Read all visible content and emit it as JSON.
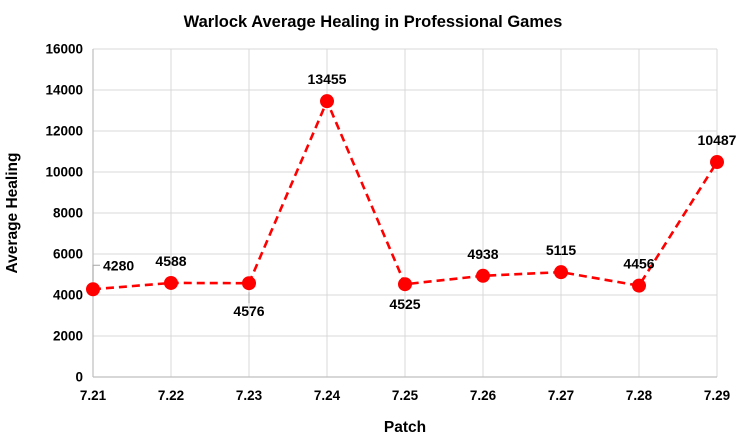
{
  "chart": {
    "title": "Warlock Average Healing in Professional Games",
    "xlabel": "Patch",
    "ylabel": "Average Healing"
  },
  "chart_data": {
    "type": "line",
    "title": "Warlock Average Healing in Professional Games",
    "xlabel": "Patch",
    "ylabel": "Average Healing",
    "categories": [
      "7.21",
      "7.22",
      "7.23",
      "7.24",
      "7.25",
      "7.26",
      "7.27",
      "7.28",
      "7.29"
    ],
    "series": [
      {
        "name": "Warlock Average Healing",
        "values": [
          4280,
          4588,
          4576,
          13455,
          4525,
          4938,
          5115,
          4456,
          10487
        ]
      }
    ],
    "data_labels": [
      "4280",
      "4588",
      "4576",
      "13455",
      "4525",
      "4938",
      "5115",
      "4456",
      "10487"
    ],
    "label_placements": [
      "right-leader",
      "above",
      "below-far",
      "above",
      "below",
      "above",
      "above",
      "above",
      "above"
    ],
    "ylim": [
      0,
      16000
    ],
    "ytick_step": 2000,
    "ytick_labels": [
      "0",
      "2000",
      "4000",
      "6000",
      "8000",
      "10000",
      "12000",
      "14000",
      "16000"
    ],
    "grid": true,
    "legend_position": "none",
    "line_style": "dashed",
    "line_color": "#FF0000",
    "marker": "circle",
    "marker_color": "#FF0000",
    "text_color": "#000000",
    "gridline_color": "#D9D9D9",
    "axis_line_color": "#BFBFBF",
    "leader_line_color": "#A6A6A6",
    "background_color": "#FFFFFF"
  }
}
